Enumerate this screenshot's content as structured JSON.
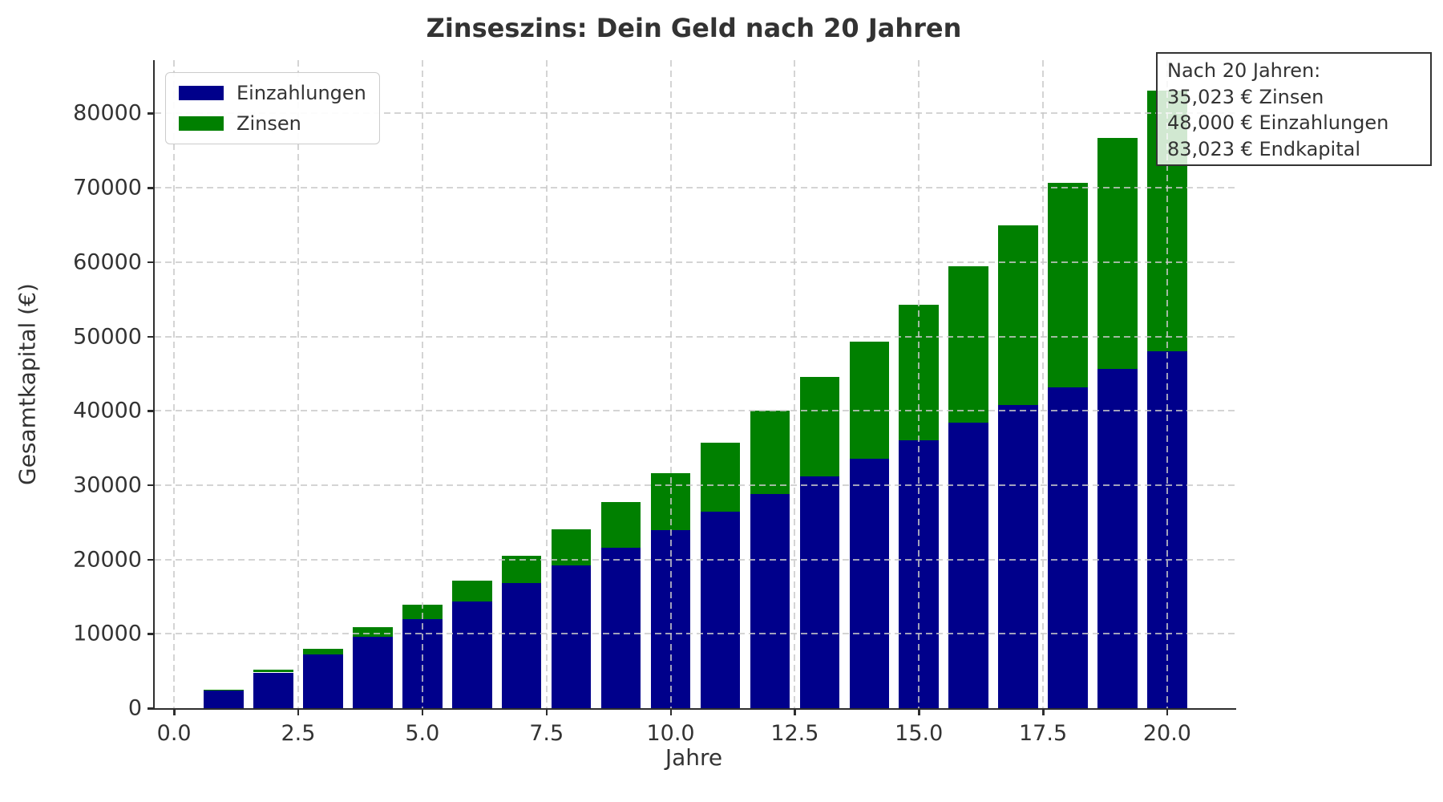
{
  "chart_data": {
    "type": "bar",
    "stacked": true,
    "title": "Zinseszins: Dein Geld nach 20 Jahren",
    "xlabel": "Jahre",
    "ylabel": "Gesamtkapital (€)",
    "categories": [
      1,
      2,
      3,
      4,
      5,
      6,
      7,
      8,
      9,
      10,
      11,
      12,
      13,
      14,
      15,
      16,
      17,
      18,
      19,
      20
    ],
    "series": [
      {
        "name": "Einzahlungen",
        "color": "#00008B",
        "values": [
          2400,
          4800,
          7200,
          9600,
          12000,
          14400,
          16800,
          19200,
          21600,
          24000,
          26400,
          28800,
          31200,
          33600,
          36000,
          38400,
          40800,
          43200,
          45600,
          48000
        ]
      },
      {
        "name": "Zinsen",
        "color": "#008000",
        "values": [
          119,
          364,
          740,
          1254,
          1912,
          2723,
          3693,
          4831,
          6145,
          7643,
          9335,
          11230,
          13339,
          15672,
          18240,
          21055,
          24129,
          27475,
          31107,
          35023
        ]
      }
    ],
    "totals": [
      2519,
      5164,
      7940,
      10854,
      13912,
      17123,
      20493,
      24031,
      27745,
      31643,
      35735,
      40030,
      44539,
      49272,
      54240,
      59455,
      64929,
      70675,
      76707,
      83023
    ],
    "bar_width": 0.8,
    "xlim": [
      -0.39,
      21.39
    ],
    "ylim": [
      0,
      87174
    ],
    "xticks": {
      "values": [
        0,
        2.5,
        5,
        7.5,
        10,
        12.5,
        15,
        17.5,
        20
      ],
      "labels": [
        "0.0",
        "2.5",
        "5.0",
        "7.5",
        "10.0",
        "12.5",
        "15.0",
        "17.5",
        "20.0"
      ]
    },
    "yticks": {
      "values": [
        0,
        10000,
        20000,
        30000,
        40000,
        50000,
        60000,
        70000,
        80000
      ],
      "labels": [
        "0",
        "10000",
        "20000",
        "30000",
        "40000",
        "50000",
        "60000",
        "70000",
        "80000"
      ]
    },
    "grid": {
      "visible": true,
      "style": "dashed",
      "color": "#c9c9c9",
      "above_bars": true
    },
    "legend": {
      "position": "upper-left",
      "items": [
        {
          "label": "Einzahlungen",
          "color": "#00008B"
        },
        {
          "label": "Zinsen",
          "color": "#008000"
        }
      ]
    },
    "annotation": {
      "lines": [
        "Nach 20 Jahren:",
        "35,023 € Zinsen",
        "48,000 € Einzahlungen",
        "83,023 € Endkapital"
      ]
    }
  }
}
